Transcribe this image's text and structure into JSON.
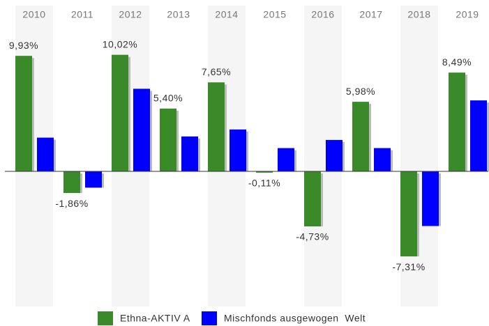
{
  "chart_data": {
    "type": "bar",
    "categories": [
      "2010",
      "2011",
      "2012",
      "2013",
      "2014",
      "2015",
      "2016",
      "2017",
      "2018",
      "2019"
    ],
    "series": [
      {
        "name": "Ethna-AKTIV A",
        "color": "#3a8a2a",
        "values": [
          9.93,
          -1.86,
          10.02,
          5.4,
          7.65,
          -0.11,
          -4.73,
          5.98,
          -7.31,
          8.49
        ],
        "value_labels": [
          "9,93%",
          "-1,86%",
          "10,02%",
          "5,40%",
          "7,65%",
          "-0,11%",
          "-4,73%",
          "5,98%",
          "-7,31%",
          "8,49%"
        ]
      },
      {
        "name": "Mischfonds ausgewogen  Welt",
        "color": "#0000ff",
        "values": [
          2.9,
          -1.4,
          7.1,
          3.0,
          3.6,
          2.0,
          2.7,
          2.0,
          -4.7,
          6.1
        ]
      }
    ],
    "legend": "bottom"
  }
}
